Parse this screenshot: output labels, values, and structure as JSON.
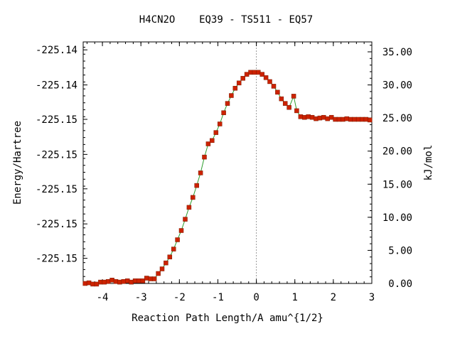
{
  "chart_data": {
    "type": "line",
    "title": "H4CN2O    EQ39 - TS511 - EQ57",
    "xlabel": "Reaction Path Length/A amu^{1/2}",
    "ylabel_left": "Energy/Hartree",
    "ylabel_right": "kJ/mol",
    "xlim": [
      -4.5,
      3.0
    ],
    "ylim_kjmol": [
      0.0,
      36.5
    ],
    "x_ticks": [
      "-4",
      "-3",
      "-2",
      "-1",
      "0",
      "1",
      "2",
      "3"
    ],
    "x_tick_values": [
      -4,
      -3,
      -2,
      -1,
      0,
      1,
      2,
      3
    ],
    "left_ticks": [
      "-225.14",
      "-225.14",
      "-225.15",
      "-225.15",
      "-225.15",
      "-225.15",
      "-225.15"
    ],
    "left_tick_values_kjmol": [
      35.3,
      30.0,
      24.8,
      19.5,
      14.3,
      9.0,
      3.8
    ],
    "right_ticks": [
      "35.00",
      "30.00",
      "25.00",
      "20.00",
      "15.00",
      "10.00",
      "5.00",
      "0.00"
    ],
    "right_tick_values": [
      35,
      30,
      25,
      20,
      15,
      10,
      5,
      0
    ],
    "ts_x": 0.0,
    "colors": {
      "line": "#2e9e2e",
      "marker": "#cc2200",
      "ts_line": "#999999"
    },
    "series": [
      {
        "points": [
          [
            -4.45,
            0.0
          ],
          [
            -4.35,
            0.1
          ],
          [
            -4.25,
            -0.1
          ],
          [
            -4.15,
            -0.1
          ],
          [
            -4.05,
            0.2
          ],
          [
            -3.95,
            0.2
          ],
          [
            -3.85,
            0.3
          ],
          [
            -3.75,
            0.5
          ],
          [
            -3.65,
            0.3
          ],
          [
            -3.55,
            0.2
          ],
          [
            -3.45,
            0.3
          ],
          [
            -3.35,
            0.4
          ],
          [
            -3.25,
            0.2
          ],
          [
            -3.15,
            0.4
          ],
          [
            -3.05,
            0.4
          ],
          [
            -2.95,
            0.4
          ],
          [
            -2.85,
            0.8
          ],
          [
            -2.75,
            0.7
          ],
          [
            -2.65,
            0.7
          ],
          [
            -2.55,
            1.5
          ],
          [
            -2.45,
            2.2
          ],
          [
            -2.35,
            3.1
          ],
          [
            -2.25,
            4.0
          ],
          [
            -2.15,
            5.2
          ],
          [
            -2.05,
            6.6
          ],
          [
            -1.95,
            8.0
          ],
          [
            -1.85,
            9.7
          ],
          [
            -1.75,
            11.5
          ],
          [
            -1.65,
            13.0
          ],
          [
            -1.55,
            14.8
          ],
          [
            -1.45,
            16.7
          ],
          [
            -1.35,
            19.1
          ],
          [
            -1.25,
            21.1
          ],
          [
            -1.15,
            21.6
          ],
          [
            -1.05,
            22.8
          ],
          [
            -0.95,
            24.1
          ],
          [
            -0.85,
            25.8
          ],
          [
            -0.75,
            27.2
          ],
          [
            -0.65,
            28.4
          ],
          [
            -0.55,
            29.5
          ],
          [
            -0.45,
            30.3
          ],
          [
            -0.35,
            31.0
          ],
          [
            -0.25,
            31.6
          ],
          [
            -0.15,
            31.9
          ],
          [
            -0.05,
            31.9
          ],
          [
            0.05,
            31.9
          ],
          [
            0.15,
            31.6
          ],
          [
            0.25,
            31.1
          ],
          [
            0.35,
            30.5
          ],
          [
            0.45,
            29.8
          ],
          [
            0.55,
            28.9
          ],
          [
            0.65,
            27.9
          ],
          [
            0.75,
            27.2
          ],
          [
            0.85,
            26.6
          ],
          [
            0.97,
            28.3
          ],
          [
            1.05,
            26.1
          ],
          [
            1.15,
            25.2
          ],
          [
            1.25,
            25.1
          ],
          [
            1.35,
            25.2
          ],
          [
            1.45,
            25.1
          ],
          [
            1.55,
            24.9
          ],
          [
            1.65,
            25.0
          ],
          [
            1.75,
            25.1
          ],
          [
            1.85,
            24.9
          ],
          [
            1.95,
            25.1
          ],
          [
            2.05,
            24.8
          ],
          [
            2.15,
            24.8
          ],
          [
            2.25,
            24.8
          ],
          [
            2.35,
            24.9
          ],
          [
            2.45,
            24.8
          ],
          [
            2.55,
            24.8
          ],
          [
            2.65,
            24.8
          ],
          [
            2.75,
            24.8
          ],
          [
            2.85,
            24.8
          ],
          [
            2.95,
            24.7
          ]
        ]
      }
    ]
  }
}
